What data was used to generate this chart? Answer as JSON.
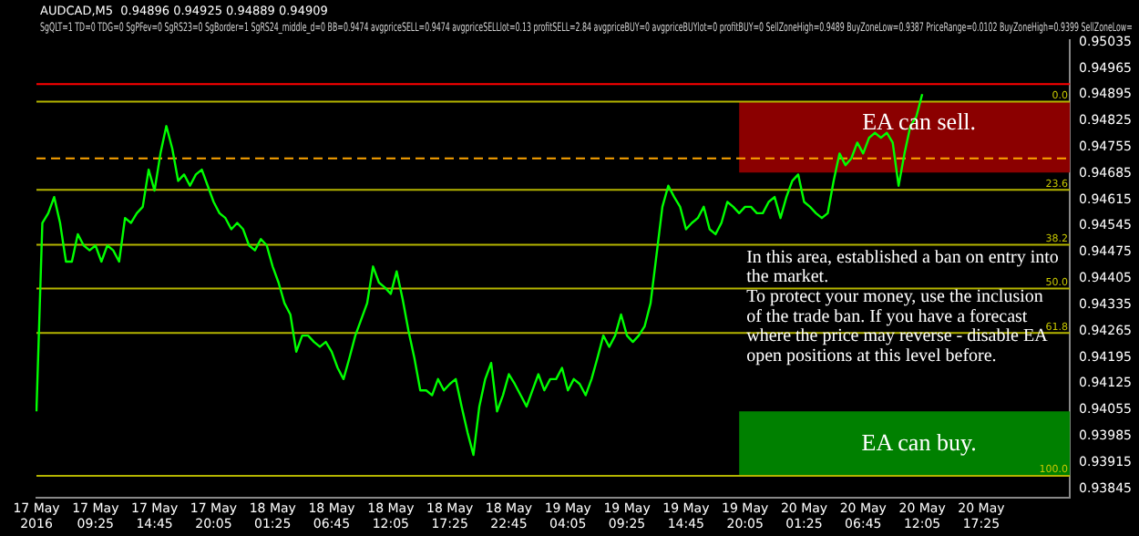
{
  "chart_data": {
    "type": "line",
    "title": "AUDCAD,M5  0.94896 0.94925 0.94889 0.94909",
    "subtitle": "SgQLT=1 TD=0 TDG=0 SgPFev=0 SgRS23=0 SgBorder=1 SgRS24_middle_d=0 BB=0.9474 avgpriceSELL=0.9474 avgpriceSELLlot=0.13 profitSELL=2.84 avgpriceBUY=0 avgpriceBUYlot=0 profitBUY=0 SellZoneHigh=0.9489 BuyZoneLow=0.9387 PriceRange=0.0102 BuyZoneHigh=0.9399 SellZoneLow=",
    "categories": [
      "17 May 2016",
      null,
      null,
      null,
      null,
      null,
      null,
      null,
      null,
      null,
      "17 May 09:25",
      null,
      null,
      null,
      null,
      null,
      null,
      null,
      null,
      null,
      "17 May 14:45",
      null,
      null,
      null,
      null,
      null,
      null,
      null,
      null,
      null,
      "17 May 20:05",
      null,
      null,
      null,
      null,
      null,
      null,
      null,
      null,
      null,
      "18 May 01:25",
      null,
      null,
      null,
      null,
      null,
      null,
      null,
      null,
      null,
      "18 May 06:45",
      null,
      null,
      null,
      null,
      null,
      null,
      null,
      null,
      null,
      "18 May 12:05",
      null,
      null,
      null,
      null,
      null,
      null,
      null,
      null,
      null,
      "18 May 17:25",
      null,
      null,
      null,
      null,
      null,
      null,
      null,
      null,
      null,
      "18 May 22:45",
      null,
      null,
      null,
      null,
      null,
      null,
      null,
      null,
      null,
      "19 May 04:05",
      null,
      null,
      null,
      null,
      null,
      null,
      null,
      null,
      null,
      "19 May 09:25",
      null,
      null,
      null,
      null,
      null,
      null,
      null,
      null,
      null,
      "19 May 14:45",
      null,
      null,
      null,
      null,
      null,
      null,
      null,
      null,
      null,
      "19 May 20:05",
      null,
      null,
      null,
      null,
      null,
      null,
      null,
      null,
      null,
      "20 May 01:25",
      null,
      null,
      null,
      null,
      null,
      null,
      null,
      null,
      null,
      "20 May 06:45",
      null,
      null,
      null,
      null,
      null,
      null,
      null,
      null,
      null,
      "20 May 12:05",
      null,
      null,
      null,
      null,
      null,
      null,
      null,
      null,
      null,
      "20 May 17:25",
      null,
      null,
      null,
      null,
      null,
      null,
      null,
      null,
      null,
      null,
      null,
      null,
      null,
      null,
      null
    ],
    "series": [
      {
        "color": "#00ff00",
        "values": [
          0.94051,
          0.94553,
          0.94579,
          0.94622,
          0.94553,
          0.9445,
          0.9445,
          0.94523,
          0.94493,
          0.9448,
          0.94493,
          0.9445,
          0.94493,
          0.9448,
          0.9445,
          0.94566,
          0.94553,
          0.94579,
          0.94596,
          0.94695,
          0.94639,
          0.94738,
          0.94811,
          0.94751,
          0.94665,
          0.94682,
          0.94652,
          0.94682,
          0.94695,
          0.94652,
          0.94609,
          0.94579,
          0.94566,
          0.94536,
          0.94553,
          0.94536,
          0.94493,
          0.9448,
          0.9451,
          0.94493,
          0.94437,
          0.94394,
          0.94339,
          0.94309,
          0.9421,
          0.94253,
          0.94253,
          0.94236,
          0.94223,
          0.94236,
          0.9421,
          0.94167,
          0.94137,
          0.94193,
          0.94253,
          0.94296,
          0.94339,
          0.94437,
          0.94394,
          0.94381,
          0.94364,
          0.94424,
          0.94351,
          0.94266,
          0.94193,
          0.94107,
          0.94107,
          0.94094,
          0.94137,
          0.94107,
          0.94124,
          0.94137,
          0.94064,
          0.93995,
          0.93935,
          0.94064,
          0.94137,
          0.9418,
          0.94051,
          0.94094,
          0.9415,
          0.94124,
          0.94094,
          0.94064,
          0.94107,
          0.9415,
          0.94107,
          0.94137,
          0.94137,
          0.94167,
          0.94107,
          0.94137,
          0.94124,
          0.94094,
          0.94137,
          0.94193,
          0.94253,
          0.94223,
          0.94253,
          0.94309,
          0.94253,
          0.94236,
          0.94253,
          0.94278,
          0.94339,
          0.94467,
          0.94596,
          0.94652,
          0.94622,
          0.94596,
          0.94536,
          0.94553,
          0.94566,
          0.94596,
          0.94536,
          0.94523,
          0.94553,
          0.94609,
          0.94596,
          0.94579,
          0.94596,
          0.94596,
          0.94579,
          0.94579,
          0.94609,
          0.94622,
          0.94566,
          0.94622,
          0.94665,
          0.94682,
          0.94609,
          0.94596,
          0.94579,
          0.94566,
          0.94579,
          0.94665,
          0.94738,
          0.94707,
          0.94725,
          0.94767,
          0.94738,
          0.9478,
          0.94793,
          0.9478,
          0.94793,
          0.94767,
          0.94652,
          0.94738,
          0.94811,
          0.94836,
          0.94896,
          null,
          null,
          null,
          null,
          null,
          null,
          null,
          null,
          null,
          null,
          null,
          null,
          null,
          null,
          null,
          null,
          null,
          null,
          null,
          null,
          null,
          null,
          null,
          null,
          null
        ]
      }
    ],
    "ylim": [
      0.9382,
      0.9504
    ],
    "yticks": [
      0.93845,
      0.93915,
      0.93985,
      0.94055,
      0.94125,
      0.94195,
      0.94265,
      0.94335,
      0.94405,
      0.94475,
      0.94545,
      0.94615,
      0.94685,
      0.94755,
      0.94825,
      0.94895,
      0.94965,
      0.95035
    ],
    "marker": "none",
    "line_style": "solid",
    "legend": false,
    "bands": [
      {
        "axis": "y",
        "from": 0.94687,
        "to": 0.94876,
        "label": "EA can sell.",
        "color": "#8b0000"
      },
      {
        "axis": "y",
        "from": 0.93879,
        "to": 0.94051,
        "label": "EA can buy.",
        "color": "#008000"
      }
    ],
    "ref_lines": [
      {
        "axis": "y",
        "value": 0.94876,
        "color": "#b4b400"
      },
      {
        "axis": "y",
        "value": 0.94641,
        "color": "#b4b400"
      },
      {
        "axis": "y",
        "value": 0.94495,
        "color": "#b4b400"
      },
      {
        "axis": "y",
        "value": 0.94378,
        "color": "#b4b400"
      },
      {
        "axis": "y",
        "value": 0.9426,
        "color": "#b4b400"
      },
      {
        "axis": "y",
        "value": 0.93879,
        "color": "#b4b400"
      },
      {
        "axis": "y",
        "value": 0.94923,
        "color": "#ff0000"
      },
      {
        "axis": "y",
        "value": 0.94725,
        "color": "#ffa500",
        "line_style": "dashed"
      }
    ],
    "annotations": [
      "In this area, established a ban on entry into the market.\nTo protect your money, use the inclusion of the trade ban. If you have a forecast where the price may reverse - disable EA open positions at this level before.",
      {
        "text": "0.0",
        "y": 0.94876
      },
      {
        "text": "23.6",
        "y": 0.94641
      },
      {
        "text": "38.2",
        "y": 0.94495
      },
      {
        "text": "50.0",
        "y": 0.94378
      },
      {
        "text": "61.8",
        "y": 0.9426
      },
      {
        "text": "100.0",
        "y": 0.93879
      }
    ]
  }
}
